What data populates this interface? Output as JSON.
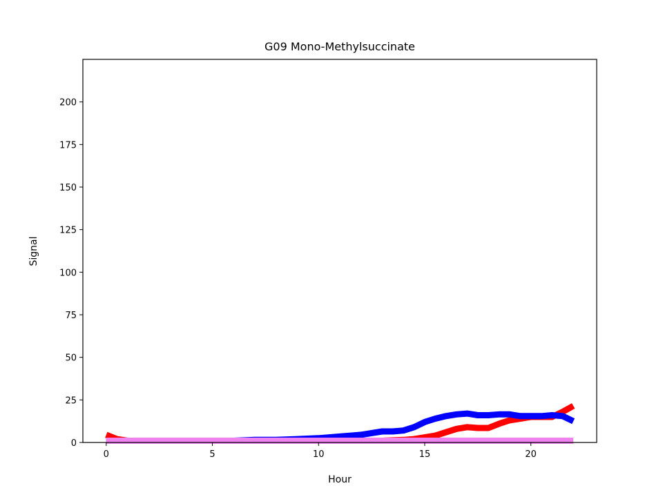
{
  "chart_data": {
    "type": "line",
    "title": "G09 Mono-Methylsuccinate",
    "xlabel": "Hour",
    "ylabel": "Signal",
    "xlim": [
      -1.1,
      23.1
    ],
    "ylim": [
      0,
      225
    ],
    "xticks": [
      0,
      5,
      10,
      15,
      20
    ],
    "yticks": [
      0,
      25,
      50,
      75,
      100,
      125,
      150,
      175,
      200
    ],
    "grid": false,
    "series": [
      {
        "color": "#ff0000",
        "x": [
          0,
          0.5,
          1,
          2,
          3,
          4,
          5,
          6,
          7,
          8,
          9,
          10,
          11,
          12,
          13,
          14,
          14.5,
          15,
          15.5,
          16,
          16.5,
          17,
          17.5,
          18,
          18.5,
          19,
          19.5,
          20,
          20.5,
          21,
          21.5,
          22
        ],
        "y": [
          4.5,
          2,
          1,
          1,
          1,
          1,
          1,
          1,
          1,
          1,
          1,
          1,
          1,
          1,
          1,
          1.5,
          2,
          3,
          4,
          6,
          8,
          9,
          8.5,
          8.5,
          11,
          13,
          14,
          15,
          15,
          15,
          18,
          21.5
        ]
      },
      {
        "color": "#0000ff",
        "x": [
          0,
          0.5,
          1,
          2,
          3,
          4,
          5,
          6,
          7,
          8,
          9,
          10,
          11,
          12,
          12.5,
          13,
          13.5,
          14,
          14.5,
          15,
          15.5,
          16,
          16.5,
          17,
          17.5,
          18,
          18.5,
          19,
          19.5,
          20,
          20.5,
          21,
          21.5,
          22
        ],
        "y": [
          1,
          1,
          1,
          1,
          1,
          1,
          1,
          1,
          1.5,
          1.5,
          2,
          2.5,
          3.5,
          4.5,
          5.5,
          6.5,
          6.5,
          7,
          9,
          12,
          14,
          15.5,
          16.5,
          17,
          16,
          16,
          16.5,
          16.5,
          15.5,
          15.5,
          15.5,
          16,
          15.5,
          12.5
        ]
      },
      {
        "color": "#ee82ee",
        "x": [
          0,
          2,
          4,
          6,
          8,
          10,
          12,
          14,
          16,
          18,
          20,
          22
        ],
        "y": [
          1,
          1,
          1,
          1,
          1,
          1,
          1,
          1,
          1,
          1,
          1,
          1
        ]
      }
    ]
  }
}
